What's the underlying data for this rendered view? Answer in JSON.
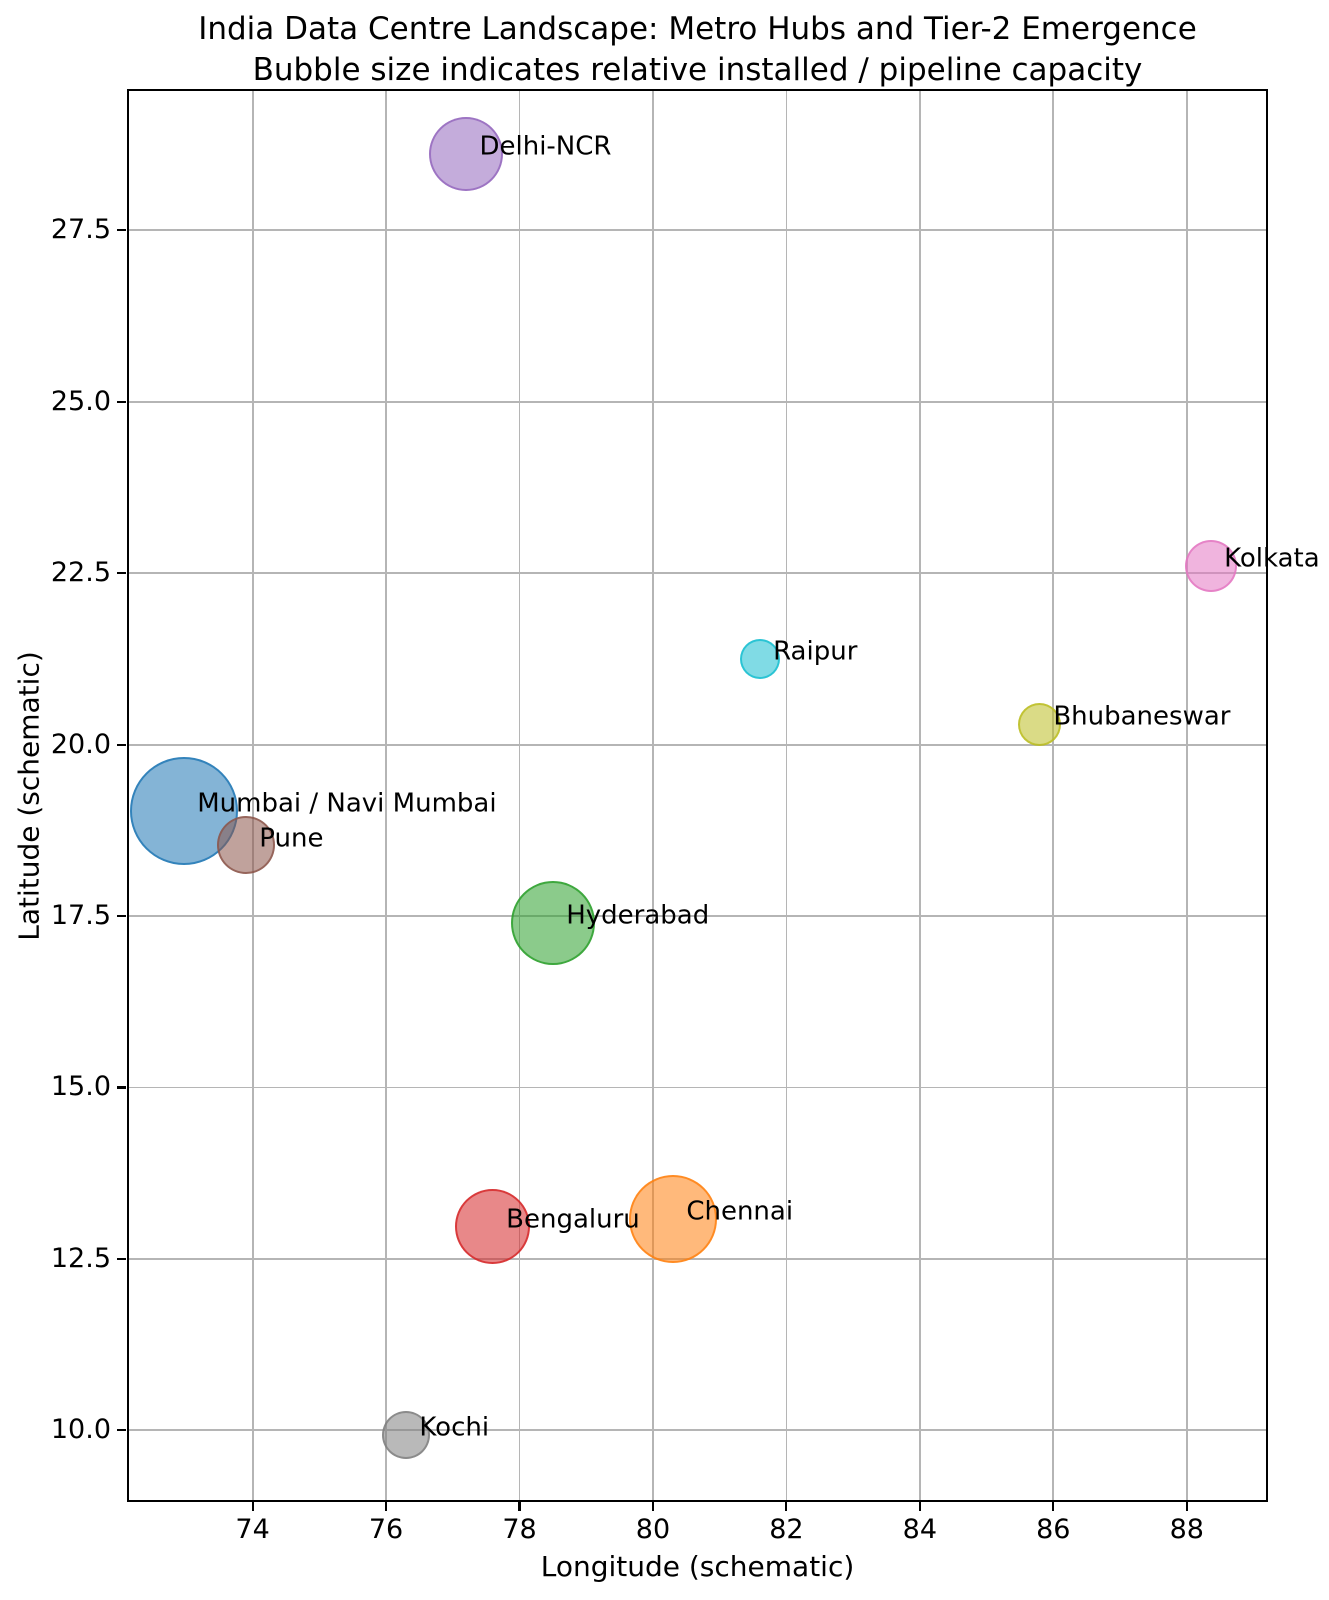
{
  "chart_data": {
    "type": "scatter",
    "title": "India Data Centre Landscape: Metro Hubs and Tier-2 Emergence",
    "subtitle": "Bubble size indicates relative installed / pipeline capacity",
    "xlabel": "Longitude (schematic)",
    "ylabel": "Latitude (schematic)",
    "xlim": [
      72.14,
      89.18
    ],
    "ylim": [
      8.99,
      29.54
    ],
    "grid": true,
    "legend": false,
    "grid_color": "#b5b5b5",
    "bubble_alpha": 0.55,
    "x_ticks": {
      "values": [
        74,
        76,
        78,
        80,
        82,
        84,
        86,
        88
      ],
      "labels": [
        "74",
        "76",
        "78",
        "80",
        "82",
        "84",
        "86",
        "88"
      ]
    },
    "y_ticks": {
      "values": [
        10.0,
        12.5,
        15.0,
        17.5,
        20.0,
        22.5,
        25.0,
        27.5
      ],
      "labels": [
        "10.0",
        "12.5",
        "15.0",
        "17.5",
        "20.0",
        "22.5",
        "25.0",
        "27.5"
      ]
    },
    "label_offset_data_units": {
      "dx": 0.2,
      "dy": 0.1
    },
    "points": [
      {
        "label": "Mumbai / Navi Mumbai",
        "x": 72.97,
        "y": 19.03,
        "radius_px": 54,
        "size_relative": 100,
        "color": "#1f77b4"
      },
      {
        "label": "Chennai",
        "x": 80.3,
        "y": 13.08,
        "radius_px": 44,
        "size_relative": 66,
        "color": "#ff7f0e"
      },
      {
        "label": "Hyderabad",
        "x": 78.5,
        "y": 17.4,
        "radius_px": 42,
        "size_relative": 60,
        "color": "#2ca02c"
      },
      {
        "label": "Bengaluru",
        "x": 77.6,
        "y": 12.97,
        "radius_px": 37.5,
        "size_relative": 48,
        "color": "#d62728"
      },
      {
        "label": "Delhi-NCR",
        "x": 77.2,
        "y": 28.61,
        "radius_px": 37,
        "size_relative": 47,
        "color": "#9467bd"
      },
      {
        "label": "Pune",
        "x": 73.9,
        "y": 18.53,
        "radius_px": 29,
        "size_relative": 29,
        "color": "#8c564b"
      },
      {
        "label": "Kolkata",
        "x": 88.36,
        "y": 22.6,
        "radius_px": 26,
        "size_relative": 23,
        "color": "#e377c2"
      },
      {
        "label": "Kochi",
        "x": 76.3,
        "y": 9.93,
        "radius_px": 24,
        "size_relative": 20,
        "color": "#7f7f7f"
      },
      {
        "label": "Bhubaneswar",
        "x": 85.8,
        "y": 20.3,
        "radius_px": 21.5,
        "size_relative": 16,
        "color": "#bcbd22"
      },
      {
        "label": "Raipur",
        "x": 81.6,
        "y": 21.25,
        "radius_px": 20,
        "size_relative": 14,
        "color": "#17becf"
      }
    ]
  }
}
